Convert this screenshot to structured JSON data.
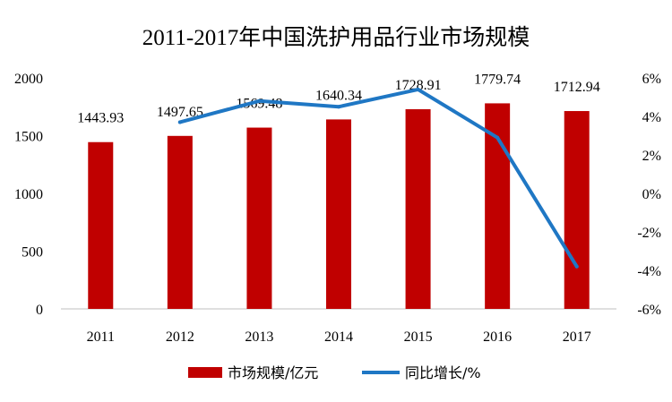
{
  "chart_data": {
    "type": "bar+line",
    "title": "2011-2017年中国洗护用品行业市场规模",
    "categories": [
      "2011",
      "2012",
      "2013",
      "2014",
      "2015",
      "2016",
      "2017"
    ],
    "series": [
      {
        "name": "市场规模/亿元",
        "type": "bar",
        "axis": "left",
        "color": "#C00000",
        "values": [
          1443.93,
          1497.65,
          1569.48,
          1640.34,
          1728.91,
          1779.74,
          1712.94
        ],
        "labels": [
          "1443.93",
          "1497.65",
          "1569.48",
          "1640.34",
          "1728.91",
          "1779.74",
          "1712.94"
        ]
      },
      {
        "name": "同比增长/%",
        "type": "line",
        "axis": "right",
        "color": "#1F77C4",
        "x": [
          "2012",
          "2013",
          "2014",
          "2015",
          "2016",
          "2017"
        ],
        "values": [
          3.7,
          4.8,
          4.5,
          5.4,
          2.9,
          -3.8
        ]
      }
    ],
    "y_left": {
      "min": 0,
      "max": 2000,
      "ticks": [
        0,
        500,
        1000,
        1500,
        2000
      ],
      "tick_labels": [
        "0",
        "500",
        "1000",
        "1500",
        "2000"
      ]
    },
    "y_right": {
      "min": -6,
      "max": 6,
      "ticks": [
        -6,
        -4,
        -2,
        0,
        2,
        4,
        6
      ],
      "tick_labels": [
        "-6%",
        "-4%",
        "-2%",
        "0%",
        "2%",
        "4%",
        "6%"
      ]
    },
    "grid": false,
    "legend": "bottom"
  }
}
